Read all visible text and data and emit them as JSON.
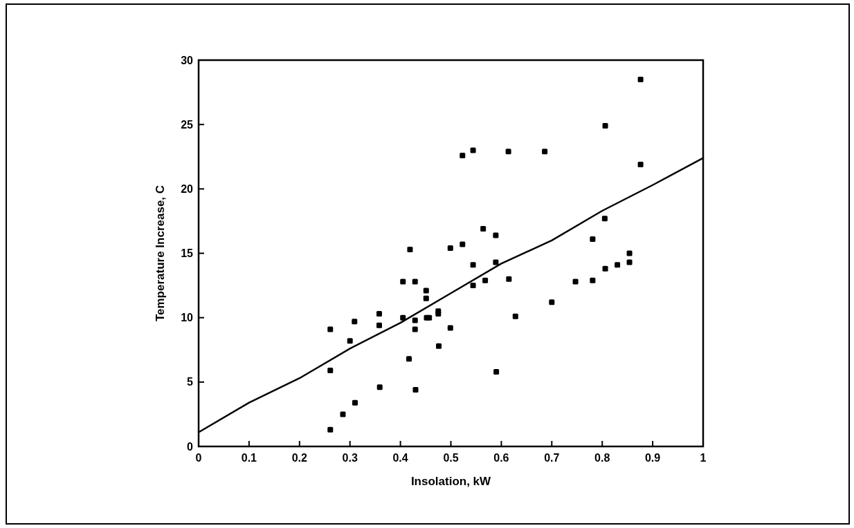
{
  "chart_data": {
    "type": "scatter",
    "xlabel": "Insolation, kW",
    "ylabel": "Temperature Increase, C",
    "xlim": [
      0,
      1
    ],
    "ylim": [
      0,
      30
    ],
    "xticks": [
      0,
      0.1,
      0.2,
      0.3,
      0.4,
      0.5,
      0.6,
      0.7,
      0.8,
      0.9,
      1
    ],
    "yticks": [
      0,
      5,
      10,
      15,
      20,
      25,
      30
    ],
    "grid": false,
    "series": [
      {
        "marker": "square",
        "color": "#000000",
        "x": [
          0.261,
          0.261,
          0.261,
          0.286,
          0.3,
          0.309,
          0.31,
          0.358,
          0.358,
          0.359,
          0.405,
          0.405,
          0.417,
          0.419,
          0.429,
          0.429,
          0.429,
          0.43,
          0.451,
          0.451,
          0.452,
          0.457,
          0.475,
          0.475,
          0.476,
          0.499,
          0.499,
          0.523,
          0.523,
          0.544,
          0.544,
          0.544,
          0.564,
          0.568,
          0.589,
          0.589,
          0.59,
          0.614,
          0.615,
          0.628,
          0.686,
          0.7,
          0.747,
          0.781,
          0.781,
          0.805,
          0.806,
          0.806,
          0.83,
          0.854,
          0.854,
          0.876,
          0.876
        ],
        "values": [
          9.1,
          5.9,
          1.3,
          2.5,
          8.2,
          9.7,
          3.4,
          10.3,
          9.4,
          4.6,
          12.8,
          10,
          6.8,
          15.3,
          12.8,
          9.8,
          9.1,
          4.4,
          12.1,
          11.5,
          10,
          10,
          10.5,
          10.3,
          7.8,
          15.4,
          9.2,
          15.7,
          22.6,
          14.1,
          12.5,
          23,
          16.9,
          12.9,
          16.4,
          14.3,
          5.8,
          22.9,
          13,
          10.1,
          22.9,
          11.2,
          12.8,
          16.1,
          12.9,
          17.7,
          24.9,
          13.8,
          14.1,
          15,
          14.3,
          28.5,
          21.9
        ]
      },
      {
        "type": "line",
        "color": "#000000",
        "x": [
          0,
          0.1,
          0.2,
          0.3,
          0.4,
          0.5,
          0.6,
          0.7,
          0.8,
          0.9,
          1
        ],
        "values": [
          1.1,
          3.4,
          5.3,
          7.6,
          9.6,
          11.9,
          14.2,
          16,
          18.3,
          20.3,
          22.4
        ]
      }
    ]
  }
}
